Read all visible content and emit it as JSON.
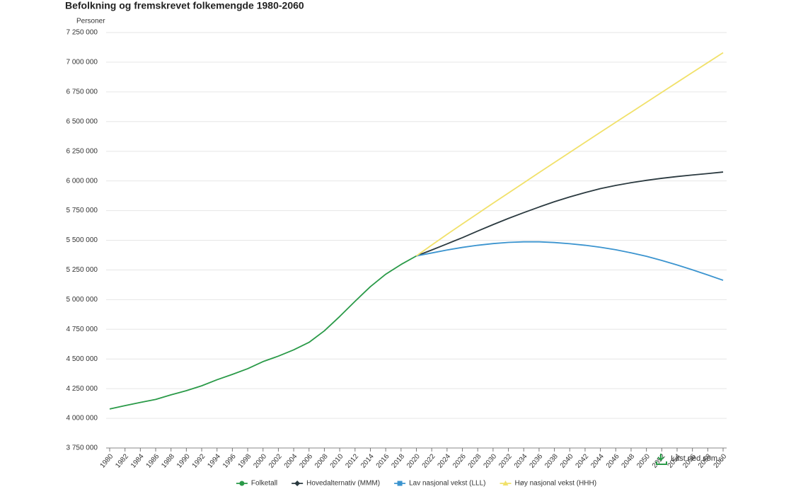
{
  "chart_data": {
    "type": "line",
    "title": "Befolkning og fremskrevet folkemengde 1980-2060",
    "y_axis_title": "Personer",
    "download_label": "Last ned som...",
    "x": [
      1980,
      1982,
      1984,
      1986,
      1988,
      1990,
      1992,
      1994,
      1996,
      1998,
      2000,
      2002,
      2004,
      2006,
      2008,
      2010,
      2012,
      2014,
      2016,
      2018,
      2020,
      2022,
      2024,
      2026,
      2028,
      2030,
      2032,
      2034,
      2036,
      2038,
      2040,
      2042,
      2044,
      2046,
      2048,
      2050,
      2052,
      2054,
      2056,
      2058,
      2060
    ],
    "xlim": [
      1980,
      2060
    ],
    "xticks": [
      1980,
      1982,
      1984,
      1986,
      1988,
      1990,
      1992,
      1994,
      1996,
      1998,
      2000,
      2002,
      2004,
      2006,
      2008,
      2010,
      2012,
      2014,
      2016,
      2018,
      2020,
      2022,
      2024,
      2026,
      2028,
      2030,
      2032,
      2034,
      2036,
      2038,
      2040,
      2042,
      2044,
      2046,
      2048,
      2050,
      2052,
      2054,
      2056,
      2058,
      2060
    ],
    "ylim": [
      3750000,
      7250000
    ],
    "yticks": [
      {
        "value": 3750000,
        "label": "3 750 000"
      },
      {
        "value": 4000000,
        "label": "4 000 000"
      },
      {
        "value": 4250000,
        "label": "4 250 000"
      },
      {
        "value": 4500000,
        "label": "4 500 000"
      },
      {
        "value": 4750000,
        "label": "4 750 000"
      },
      {
        "value": 5000000,
        "label": "5 000 000"
      },
      {
        "value": 5250000,
        "label": "5 250 000"
      },
      {
        "value": 5500000,
        "label": "5 500 000"
      },
      {
        "value": 5750000,
        "label": "5 750 000"
      },
      {
        "value": 6000000,
        "label": "6 000 000"
      },
      {
        "value": 6250000,
        "label": "6 250 000"
      },
      {
        "value": 6500000,
        "label": "6 500 000"
      },
      {
        "value": 6750000,
        "label": "6 750 000"
      },
      {
        "value": 7000000,
        "label": "7 000 000"
      },
      {
        "value": 7250000,
        "label": "7 250 000"
      }
    ],
    "grid": true,
    "legend": "bottom",
    "series": [
      {
        "name": "Folketall",
        "color": "#2a9a48",
        "marker": "circle",
        "values": [
          4079000,
          4107000,
          4134000,
          4159000,
          4198000,
          4233000,
          4274000,
          4325000,
          4370000,
          4418000,
          4478000,
          4524000,
          4577000,
          4640000,
          4737000,
          4858000,
          4986000,
          5109000,
          5214000,
          5296000,
          5368000,
          null,
          null,
          null,
          null,
          null,
          null,
          null,
          null,
          null,
          null,
          null,
          null,
          null,
          null,
          null,
          null,
          null,
          null,
          null,
          null
        ]
      },
      {
        "name": "Hovedalternativ (MMM)",
        "color": "#2b3a40",
        "marker": "diamond",
        "values": [
          null,
          null,
          null,
          null,
          null,
          null,
          null,
          null,
          null,
          null,
          null,
          null,
          null,
          null,
          null,
          null,
          null,
          null,
          null,
          null,
          5368000,
          5418000,
          5470000,
          5522000,
          5578000,
          5632000,
          5684000,
          5733000,
          5780000,
          5825000,
          5865000,
          5902000,
          5935000,
          5962000,
          5985000,
          6005000,
          6022000,
          6037000,
          6050000,
          6062000,
          6075000
        ]
      },
      {
        "name": "Lav nasjonal vekst (LLL)",
        "color": "#3b94cf",
        "marker": "square",
        "values": [
          null,
          null,
          null,
          null,
          null,
          null,
          null,
          null,
          null,
          null,
          null,
          null,
          null,
          null,
          null,
          null,
          null,
          null,
          null,
          null,
          5368000,
          5393000,
          5418000,
          5440000,
          5458000,
          5472000,
          5482000,
          5487000,
          5487000,
          5481000,
          5471000,
          5458000,
          5441000,
          5420000,
          5394000,
          5365000,
          5330000,
          5292000,
          5251000,
          5208000,
          5163000
        ]
      },
      {
        "name": "Høy nasjonal vekst (HHH)",
        "color": "#f1e16a",
        "marker": "triangle",
        "values": [
          null,
          null,
          null,
          null,
          null,
          null,
          null,
          null,
          null,
          null,
          null,
          null,
          null,
          null,
          null,
          null,
          null,
          null,
          null,
          null,
          5368000,
          5460000,
          5550000,
          5638000,
          5725000,
          5812000,
          5898000,
          5984000,
          6070000,
          6155000,
          6240000,
          6325000,
          6410000,
          6494000,
          6578000,
          6662000,
          6746000,
          6830000,
          6914000,
          6997000,
          7080000
        ]
      }
    ]
  }
}
